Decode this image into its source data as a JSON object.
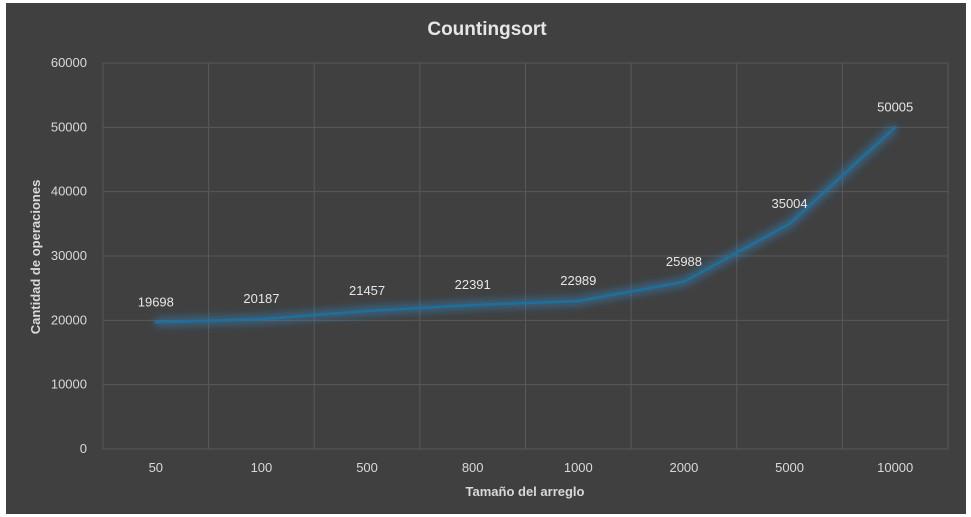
{
  "chart_data": {
    "type": "line",
    "title": "Countingsort",
    "xlabel": "Tamaño del arreglo",
    "ylabel": "Cantidad de operaciones",
    "categories": [
      "50",
      "100",
      "500",
      "800",
      "1000",
      "2000",
      "5000",
      "10000"
    ],
    "series": [
      {
        "values": [
          19698,
          20187,
          21457,
          22391,
          22989,
          25988,
          35004,
          50005
        ]
      }
    ],
    "data_labels": [
      "19698",
      "20187",
      "21457",
      "22391",
      "22989",
      "25988",
      "35004",
      "50005"
    ],
    "ylim": [
      0,
      60000
    ],
    "yticks": [
      "0",
      "10000",
      "20000",
      "30000",
      "40000",
      "50000",
      "60000"
    ],
    "grid": true,
    "legend": "none",
    "colors": {
      "background": "#404040",
      "grid": "#595959",
      "line": "#1f6f9c",
      "glow": "#2e8fd0"
    }
  }
}
